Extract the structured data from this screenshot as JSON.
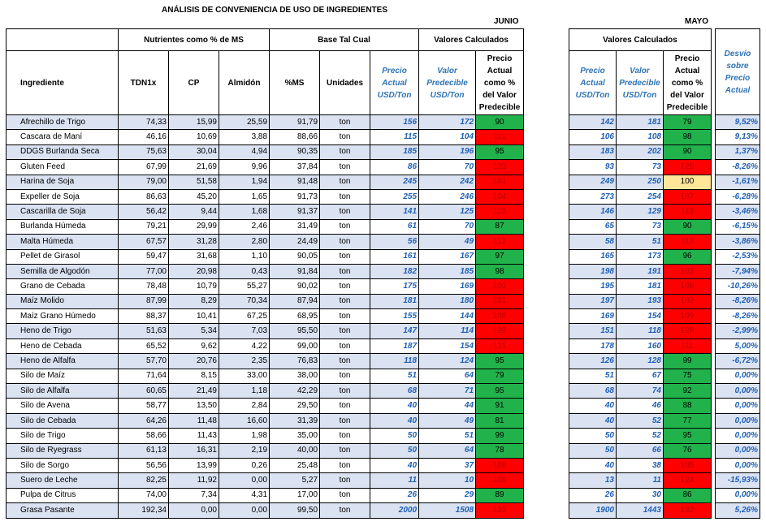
{
  "title": "ANÁLISIS DE CONVENIENCIA DE USO DE INGREDIENTES",
  "month_junio": "JUNIO",
  "month_mayo": "MAYO",
  "groups": {
    "nutrientes": "Nutrientes como % de MS",
    "base": "Base Tal Cual",
    "calc_junio": "Valores Calculados",
    "calc_mayo": "Valores Calculados"
  },
  "headers": {
    "ingrediente": "Ingrediente",
    "tdn": "TDN1x",
    "cp": "CP",
    "almidon": "Almidón",
    "ms": "%MS",
    "unidades": "Unidades",
    "precio": "Precio Actual USD/Ton",
    "valor": "Valor Predecible USD/Ton",
    "pct": "Precio Actual como % del Valor Predecible",
    "precio_m": "Precio Actual USD/Ton",
    "valor_m": "Valor Predecible USD/Ton",
    "pct_m": "Precio Actual como % del Valor Predecible",
    "desvio": "Desvío sobre Precio Actual"
  },
  "rows": [
    {
      "name": "Afrechillo de Trigo",
      "tdn": "74,33",
      "cp": "15,99",
      "alm": "25,59",
      "ms": "91,79",
      "un": "ton",
      "pj": "156",
      "vj": "172",
      "cj": "90",
      "cjc": "g",
      "pm": "142",
      "vm": "181",
      "cm": "79",
      "cmc": "g",
      "d": "9,52%"
    },
    {
      "name": "Cascara de Maní",
      "tdn": "46,16",
      "cp": "10,69",
      "alm": "3,88",
      "ms": "88,66",
      "un": "ton",
      "pj": "115",
      "vj": "104",
      "cj": "111",
      "cjc": "r",
      "pm": "106",
      "vm": "108",
      "cm": "98",
      "cmc": "g",
      "d": "9,13%"
    },
    {
      "name": "DDGS Burlanda Seca",
      "tdn": "75,63",
      "cp": "30,04",
      "alm": "4,94",
      "ms": "90,35",
      "un": "ton",
      "pj": "185",
      "vj": "196",
      "cj": "95",
      "cjc": "g",
      "pm": "183",
      "vm": "202",
      "cm": "90",
      "cmc": "g",
      "d": "1,37%"
    },
    {
      "name": "Gluten Feed",
      "tdn": "67,99",
      "cp": "21,69",
      "alm": "9,96",
      "ms": "37,84",
      "un": "ton",
      "pj": "86",
      "vj": "70",
      "cj": "123",
      "cjc": "r",
      "pm": "93",
      "vm": "73",
      "cm": "129",
      "cmc": "r",
      "d": "-8,26%"
    },
    {
      "name": "Harina de Soja",
      "tdn": "79,00",
      "cp": "51,58",
      "alm": "1,94",
      "ms": "91,48",
      "un": "ton",
      "pj": "245",
      "vj": "242",
      "cj": "101",
      "cjc": "r",
      "pm": "249",
      "vm": "250",
      "cm": "100",
      "cmc": "y",
      "d": "-1,61%"
    },
    {
      "name": "Expeller de Soja",
      "tdn": "86,63",
      "cp": "45,20",
      "alm": "1,65",
      "ms": "91,73",
      "un": "ton",
      "pj": "255",
      "vj": "246",
      "cj": "104",
      "cjc": "r",
      "pm": "273",
      "vm": "254",
      "cm": "107",
      "cmc": "r",
      "d": "-6,28%"
    },
    {
      "name": "Cascarilla de Soja",
      "tdn": "56,42",
      "cp": "9,44",
      "alm": "1,68",
      "ms": "91,37",
      "un": "ton",
      "pj": "141",
      "vj": "125",
      "cj": "113",
      "cjc": "r",
      "pm": "146",
      "vm": "129",
      "cm": "113",
      "cmc": "r",
      "d": "-3,46%"
    },
    {
      "name": "Burlanda Húmeda",
      "tdn": "79,21",
      "cp": "29,99",
      "alm": "2,46",
      "ms": "31,49",
      "un": "ton",
      "pj": "61",
      "vj": "70",
      "cj": "87",
      "cjc": "g",
      "pm": "65",
      "vm": "73",
      "cm": "90",
      "cmc": "g",
      "d": "-6,15%"
    },
    {
      "name": "Malta Húmeda",
      "tdn": "67,57",
      "cp": "31,28",
      "alm": "2,80",
      "ms": "24,49",
      "un": "ton",
      "pj": "56",
      "vj": "49",
      "cj": "112",
      "cjc": "r",
      "pm": "58",
      "vm": "51",
      "cm": "113",
      "cmc": "r",
      "d": "-3,86%"
    },
    {
      "name": "Pellet de Girasol",
      "tdn": "59,47",
      "cp": "31,68",
      "alm": "1,10",
      "ms": "90,05",
      "un": "ton",
      "pj": "161",
      "vj": "167",
      "cj": "97",
      "cjc": "g",
      "pm": "165",
      "vm": "173",
      "cm": "96",
      "cmc": "g",
      "d": "-2,53%"
    },
    {
      "name": "Semilla de Algodón",
      "tdn": "77,00",
      "cp": "20,98",
      "alm": "0,43",
      "ms": "91,84",
      "un": "ton",
      "pj": "182",
      "vj": "185",
      "cj": "98",
      "cjc": "g",
      "pm": "198",
      "vm": "191",
      "cm": "103",
      "cmc": "r",
      "d": "-7,94%"
    },
    {
      "name": "Grano de Cebada",
      "tdn": "78,48",
      "cp": "10,79",
      "alm": "55,27",
      "ms": "90,02",
      "un": "ton",
      "pj": "175",
      "vj": "169",
      "cj": "103",
      "cjc": "r",
      "pm": "195",
      "vm": "181",
      "cm": "108",
      "cmc": "r",
      "d": "-10,26%"
    },
    {
      "name": "Maíz Molido",
      "tdn": "87,99",
      "cp": "8,29",
      "alm": "70,34",
      "ms": "87,94",
      "un": "ton",
      "pj": "181",
      "vj": "180",
      "cj": "101",
      "cjc": "r",
      "pm": "197",
      "vm": "193",
      "cm": "102",
      "cmc": "r",
      "d": "-8,26%"
    },
    {
      "name": "Maíz Grano Húmedo",
      "tdn": "88,37",
      "cp": "10,41",
      "alm": "67,25",
      "ms": "68,95",
      "un": "ton",
      "pj": "155",
      "vj": "144",
      "cj": "108",
      "cjc": "r",
      "pm": "169",
      "vm": "154",
      "cm": "109",
      "cmc": "r",
      "d": "-8,26%"
    },
    {
      "name": "Heno de Trigo",
      "tdn": "51,63",
      "cp": "5,34",
      "alm": "7,03",
      "ms": "95,50",
      "un": "ton",
      "pj": "147",
      "vj": "114",
      "cj": "129",
      "cjc": "r",
      "pm": "151",
      "vm": "118",
      "cm": "128",
      "cmc": "r",
      "d": "-2,99%"
    },
    {
      "name": "Heno de Cebada",
      "tdn": "65,52",
      "cp": "9,62",
      "alm": "4,22",
      "ms": "99,00",
      "un": "ton",
      "pj": "187",
      "vj": "154",
      "cj": "121",
      "cjc": "r",
      "pm": "178",
      "vm": "160",
      "cm": "111",
      "cmc": "r",
      "d": "5,00%"
    },
    {
      "name": "Heno de Alfalfa",
      "tdn": "57,70",
      "cp": "20,76",
      "alm": "2,35",
      "ms": "76,83",
      "un": "ton",
      "pj": "118",
      "vj": "124",
      "cj": "95",
      "cjc": "g",
      "pm": "126",
      "vm": "128",
      "cm": "99",
      "cmc": "g",
      "d": "-6,72%"
    },
    {
      "name": "Silo de Maíz",
      "tdn": "71,64",
      "cp": "8,15",
      "alm": "33,00",
      "ms": "38,00",
      "un": "ton",
      "pj": "51",
      "vj": "64",
      "cj": "79",
      "cjc": "g",
      "pm": "51",
      "vm": "67",
      "cm": "75",
      "cmc": "g",
      "d": "0,00%"
    },
    {
      "name": "Silo de Alfalfa",
      "tdn": "60,65",
      "cp": "21,49",
      "alm": "1,18",
      "ms": "42,29",
      "un": "ton",
      "pj": "68",
      "vj": "71",
      "cj": "95",
      "cjc": "g",
      "pm": "68",
      "vm": "74",
      "cm": "92",
      "cmc": "g",
      "d": "0,00%"
    },
    {
      "name": "Silo de Avena",
      "tdn": "58,77",
      "cp": "13,50",
      "alm": "2,84",
      "ms": "29,50",
      "un": "ton",
      "pj": "40",
      "vj": "44",
      "cj": "91",
      "cjc": "g",
      "pm": "40",
      "vm": "46",
      "cm": "88",
      "cmc": "g",
      "d": "0,00%"
    },
    {
      "name": "Silo de Cebada",
      "tdn": "64,26",
      "cp": "11,48",
      "alm": "16,60",
      "ms": "31,39",
      "un": "ton",
      "pj": "40",
      "vj": "49",
      "cj": "81",
      "cjc": "g",
      "pm": "40",
      "vm": "52",
      "cm": "77",
      "cmc": "g",
      "d": "0,00%"
    },
    {
      "name": "Silo de Trigo",
      "tdn": "58,66",
      "cp": "11,43",
      "alm": "1,98",
      "ms": "35,00",
      "un": "ton",
      "pj": "50",
      "vj": "51",
      "cj": "99",
      "cjc": "g",
      "pm": "50",
      "vm": "52",
      "cm": "95",
      "cmc": "g",
      "d": "0,00%"
    },
    {
      "name": "Silo de Ryegrass",
      "tdn": "61,13",
      "cp": "16,31",
      "alm": "2,19",
      "ms": "40,00",
      "un": "ton",
      "pj": "50",
      "vj": "64",
      "cj": "78",
      "cjc": "g",
      "pm": "50",
      "vm": "66",
      "cm": "76",
      "cmc": "g",
      "d": "0,00%"
    },
    {
      "name": "Silo de Sorgo",
      "tdn": "56,56",
      "cp": "13,99",
      "alm": "0,26",
      "ms": "25,48",
      "un": "ton",
      "pj": "40",
      "vj": "37",
      "cj": "108",
      "cjc": "r",
      "pm": "40",
      "vm": "38",
      "cm": "105",
      "cmc": "r",
      "d": "0,00%"
    },
    {
      "name": "Suero de Leche",
      "tdn": "82,25",
      "cp": "11,92",
      "alm": "0,00",
      "ms": "5,27",
      "un": "ton",
      "pj": "11",
      "vj": "10",
      "cj": "108",
      "cjc": "r",
      "pm": "13",
      "vm": "11",
      "cm": "124",
      "cmc": "r",
      "d": "-15,93%"
    },
    {
      "name": "Pulpa de Citrus",
      "tdn": "74,00",
      "cp": "7,34",
      "alm": "4,31",
      "ms": "17,00",
      "un": "ton",
      "pj": "26",
      "vj": "29",
      "cj": "89",
      "cjc": "g",
      "pm": "26",
      "vm": "30",
      "cm": "86",
      "cmc": "g",
      "d": "0,00%"
    },
    {
      "name": "Grasa Pasante",
      "tdn": "192,34",
      "cp": "0,00",
      "alm": "0,00",
      "ms": "99,50",
      "un": "ton",
      "pj": "2000",
      "vj": "1508",
      "cj": "133",
      "cjc": "r",
      "pm": "1900",
      "vm": "1443",
      "cm": "132",
      "cmc": "r",
      "d": "5,26%"
    }
  ]
}
